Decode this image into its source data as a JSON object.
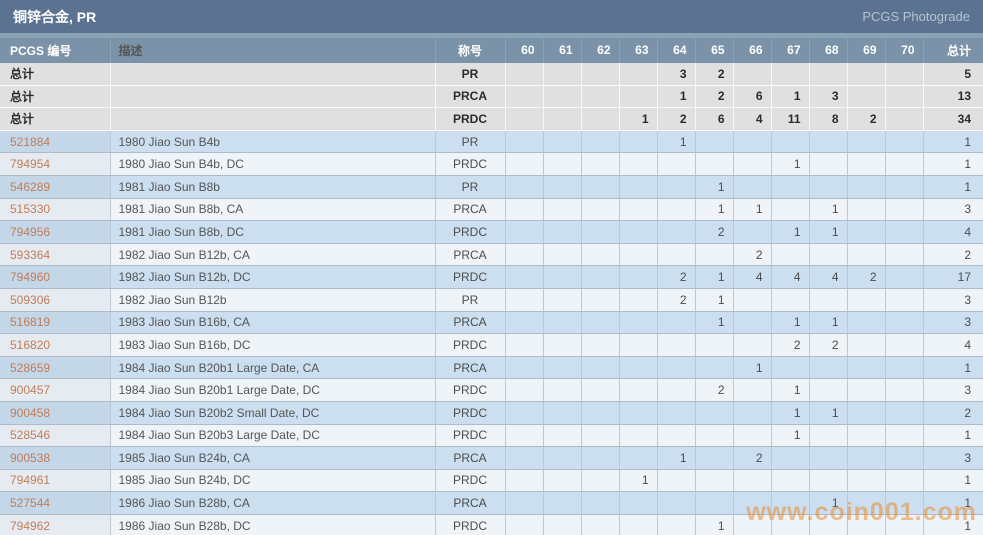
{
  "header": {
    "title": "铜锌合金, PR",
    "photograde_label": "PCGS Photograde"
  },
  "table": {
    "columns": {
      "pcgs_number": "PCGS 编号",
      "description": "描述",
      "designation": "称号",
      "total": "总计"
    },
    "grade_columns": [
      "60",
      "61",
      "62",
      "63",
      "64",
      "65",
      "66",
      "67",
      "68",
      "69",
      "70"
    ],
    "total_rows": [
      {
        "label": "总计",
        "description": "",
        "designation": "PR",
        "grades": [
          "",
          "",
          "",
          "",
          "3",
          "2",
          "",
          "",
          "",
          "",
          ""
        ],
        "total": "5"
      },
      {
        "label": "总计",
        "description": "",
        "designation": "PRCA",
        "grades": [
          "",
          "",
          "",
          "",
          "1",
          "2",
          "6",
          "1",
          "3",
          "",
          ""
        ],
        "total": "13"
      },
      {
        "label": "总计",
        "description": "",
        "designation": "PRDC",
        "grades": [
          "",
          "",
          "",
          "1",
          "2",
          "6",
          "4",
          "11",
          "8",
          "2",
          ""
        ],
        "total": "34"
      }
    ],
    "rows": [
      {
        "pcgs_number": "521884",
        "description": "1980 Jiao Sun B4b",
        "designation": "PR",
        "grades": [
          "",
          "",
          "",
          "",
          "1",
          "",
          "",
          "",
          "",
          "",
          ""
        ],
        "total": "1"
      },
      {
        "pcgs_number": "794954",
        "description": "1980 Jiao Sun B4b, DC",
        "designation": "PRDC",
        "grades": [
          "",
          "",
          "",
          "",
          "",
          "",
          "",
          "1",
          "",
          "",
          ""
        ],
        "total": "1"
      },
      {
        "pcgs_number": "546289",
        "description": "1981 Jiao Sun B8b",
        "designation": "PR",
        "grades": [
          "",
          "",
          "",
          "",
          "",
          "1",
          "",
          "",
          "",
          "",
          ""
        ],
        "total": "1"
      },
      {
        "pcgs_number": "515330",
        "description": "1981 Jiao Sun B8b, CA",
        "designation": "PRCA",
        "grades": [
          "",
          "",
          "",
          "",
          "",
          "1",
          "1",
          "",
          "1",
          "",
          ""
        ],
        "total": "3"
      },
      {
        "pcgs_number": "794956",
        "description": "1981 Jiao Sun B8b, DC",
        "designation": "PRDC",
        "grades": [
          "",
          "",
          "",
          "",
          "",
          "2",
          "",
          "1",
          "1",
          "",
          ""
        ],
        "total": "4"
      },
      {
        "pcgs_number": "593364",
        "description": "1982 Jiao Sun B12b, CA",
        "designation": "PRCA",
        "grades": [
          "",
          "",
          "",
          "",
          "",
          "",
          "2",
          "",
          "",
          "",
          ""
        ],
        "total": "2"
      },
      {
        "pcgs_number": "794960",
        "description": "1982 Jiao Sun B12b, DC",
        "designation": "PRDC",
        "grades": [
          "",
          "",
          "",
          "",
          "2",
          "1",
          "4",
          "4",
          "4",
          "2",
          ""
        ],
        "total": "17"
      },
      {
        "pcgs_number": "509306",
        "description": "1982 Jiao Sun B12b",
        "designation": "PR",
        "grades": [
          "",
          "",
          "",
          "",
          "2",
          "1",
          "",
          "",
          "",
          "",
          ""
        ],
        "total": "3"
      },
      {
        "pcgs_number": "516819",
        "description": "1983 Jiao Sun B16b, CA",
        "designation": "PRCA",
        "grades": [
          "",
          "",
          "",
          "",
          "",
          "1",
          "",
          "1",
          "1",
          "",
          ""
        ],
        "total": "3"
      },
      {
        "pcgs_number": "516820",
        "description": "1983 Jiao Sun B16b, DC",
        "designation": "PRDC",
        "grades": [
          "",
          "",
          "",
          "",
          "",
          "",
          "",
          "2",
          "2",
          "",
          ""
        ],
        "total": "4"
      },
      {
        "pcgs_number": "528659",
        "description": "1984 Jiao Sun B20b1 Large Date, CA",
        "designation": "PRCA",
        "grades": [
          "",
          "",
          "",
          "",
          "",
          "",
          "1",
          "",
          "",
          "",
          ""
        ],
        "total": "1"
      },
      {
        "pcgs_number": "900457",
        "description": "1984 Jiao Sun B20b1 Large Date, DC",
        "designation": "PRDC",
        "grades": [
          "",
          "",
          "",
          "",
          "",
          "2",
          "",
          "1",
          "",
          "",
          ""
        ],
        "total": "3"
      },
      {
        "pcgs_number": "900458",
        "description": "1984 Jiao Sun B20b2 Small Date, DC",
        "designation": "PRDC",
        "grades": [
          "",
          "",
          "",
          "",
          "",
          "",
          "",
          "1",
          "1",
          "",
          ""
        ],
        "total": "2"
      },
      {
        "pcgs_number": "528546",
        "description": "1984 Jiao Sun B20b3 Large Date, DC",
        "designation": "PRDC",
        "grades": [
          "",
          "",
          "",
          "",
          "",
          "",
          "",
          "1",
          "",
          "",
          ""
        ],
        "total": "1"
      },
      {
        "pcgs_number": "900538",
        "description": "1985 Jiao Sun B24b, CA",
        "designation": "PRCA",
        "grades": [
          "",
          "",
          "",
          "",
          "1",
          "",
          "2",
          "",
          "",
          "",
          ""
        ],
        "total": "3"
      },
      {
        "pcgs_number": "794961",
        "description": "1985 Jiao Sun B24b, DC",
        "designation": "PRDC",
        "grades": [
          "",
          "",
          "",
          "1",
          "",
          "",
          "",
          "",
          "",
          "",
          ""
        ],
        "total": "1"
      },
      {
        "pcgs_number": "527544",
        "description": "1986 Jiao Sun B28b, CA",
        "designation": "PRCA",
        "grades": [
          "",
          "",
          "",
          "",
          "",
          "",
          "",
          "",
          "1",
          "",
          ""
        ],
        "total": "1"
      },
      {
        "pcgs_number": "794962",
        "description": "1986 Jiao Sun B28b, DC",
        "designation": "PRDC",
        "grades": [
          "",
          "",
          "",
          "",
          "",
          "1",
          "",
          "",
          "",
          "",
          ""
        ],
        "total": "1"
      }
    ]
  },
  "watermark": {
    "text": "www.coin001.com"
  },
  "theme": {
    "title_bar": "#5b7390",
    "header_bg": "#7b93a8",
    "total_bg": "#e0e0e1",
    "row_odd": "#cbdff0",
    "row_even": "#eff4f9",
    "link": "#c27d58",
    "watermark": "rgba(232,140,50,0.55)"
  }
}
